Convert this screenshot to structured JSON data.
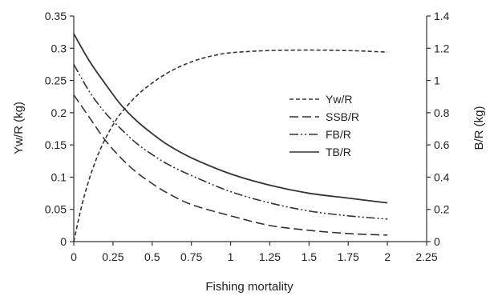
{
  "chart_data": {
    "type": "line",
    "title": "",
    "xlabel": "Fishing mortality",
    "ylabel_left": "Yw/R (kg)",
    "ylabel_right": "B/R (kg)",
    "x_ticks": [
      "0",
      "0.25",
      "0.5",
      "0.75",
      "1",
      "1.25",
      "1.5",
      "1.75",
      "2",
      "2.25"
    ],
    "y_left_ticks": [
      "0",
      "0.05",
      "0.1",
      "0.15",
      "0.2",
      "0.25",
      "0.3",
      "0.35"
    ],
    "y_right_ticks": [
      "0",
      "0.2",
      "0.4",
      "0.6",
      "0.8",
      "1",
      "1.2",
      "1.4"
    ],
    "xlim": [
      0,
      2.25
    ],
    "ylim_left": [
      0,
      0.35
    ],
    "ylim_right": [
      0,
      1.4
    ],
    "grid": false,
    "legend_position": "center-right",
    "series": [
      {
        "name": "Yw/R",
        "axis": "left",
        "dash": "dashed-short",
        "x": [
          0,
          0.05,
          0.1,
          0.15,
          0.2,
          0.25,
          0.3,
          0.4,
          0.5,
          0.6,
          0.7,
          0.8,
          0.9,
          1.0,
          1.2,
          1.4,
          1.6,
          1.8,
          2.0
        ],
        "y": [
          0.0,
          0.055,
          0.098,
          0.132,
          0.159,
          0.181,
          0.199,
          0.226,
          0.246,
          0.262,
          0.274,
          0.283,
          0.289,
          0.293,
          0.296,
          0.297,
          0.297,
          0.296,
          0.294
        ]
      },
      {
        "name": "SSB/R",
        "axis": "right",
        "dash": "dashed-long",
        "x": [
          0,
          0.1,
          0.2,
          0.3,
          0.4,
          0.5,
          0.6,
          0.75,
          1.0,
          1.25,
          1.5,
          1.75,
          2.0
        ],
        "y": [
          0.91,
          0.77,
          0.63,
          0.52,
          0.43,
          0.36,
          0.3,
          0.23,
          0.16,
          0.1,
          0.07,
          0.05,
          0.04
        ]
      },
      {
        "name": "FB/R",
        "axis": "right",
        "dash": "dash-dot-dot",
        "x": [
          0,
          0.1,
          0.2,
          0.3,
          0.4,
          0.5,
          0.6,
          0.75,
          1.0,
          1.25,
          1.5,
          1.75,
          2.0
        ],
        "y": [
          1.1,
          0.93,
          0.8,
          0.7,
          0.61,
          0.54,
          0.48,
          0.41,
          0.31,
          0.24,
          0.19,
          0.16,
          0.14
        ]
      },
      {
        "name": "TB/R",
        "axis": "right",
        "dash": "solid",
        "x": [
          0,
          0.1,
          0.2,
          0.3,
          0.4,
          0.5,
          0.6,
          0.75,
          1.0,
          1.25,
          1.5,
          1.75,
          2.0
        ],
        "y": [
          1.29,
          1.12,
          0.98,
          0.85,
          0.75,
          0.67,
          0.6,
          0.52,
          0.42,
          0.35,
          0.3,
          0.27,
          0.24
        ]
      }
    ]
  }
}
